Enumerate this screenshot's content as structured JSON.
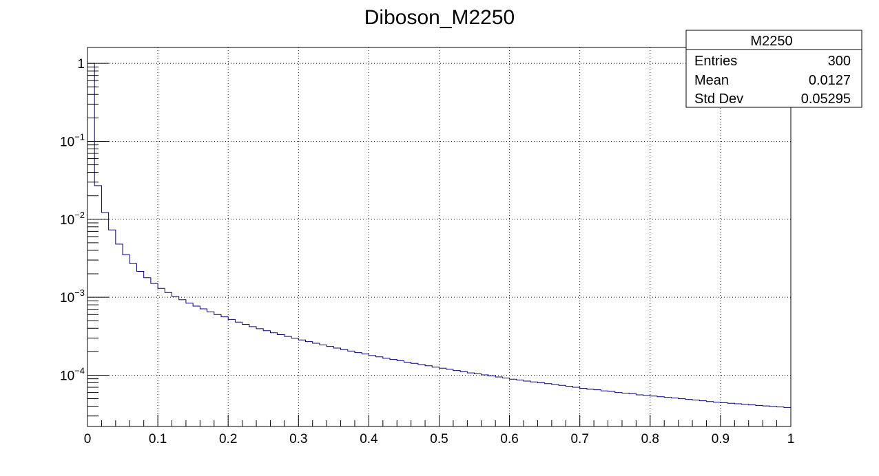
{
  "chart_data": {
    "type": "line",
    "drawstyle": "histogram-step",
    "title": "Diboson_M2250",
    "xlabel": "",
    "ylabel": "",
    "xlim": [
      0,
      1
    ],
    "ylim": [
      2.2e-05,
      1.6
    ],
    "yscale": "log",
    "grid": true,
    "x_ticks": [
      "0",
      "0.1",
      "0.2",
      "0.3",
      "0.4",
      "0.5",
      "0.6",
      "0.7",
      "0.8",
      "0.9",
      "1"
    ],
    "y_ticks": [
      {
        "value": 1,
        "base": "1",
        "exp": ""
      },
      {
        "value": 0.1,
        "base": "10",
        "exp": "−1"
      },
      {
        "value": 0.01,
        "base": "10",
        "exp": "−2"
      },
      {
        "value": 0.001,
        "base": "10",
        "exp": "−3"
      },
      {
        "value": 0.0001,
        "base": "10",
        "exp": "−4"
      }
    ],
    "bin_width": 0.01,
    "bin_edges_start": 0,
    "series": [
      {
        "color": "#000080",
        "values": [
          1.0,
          0.027,
          0.0122,
          0.0073,
          0.0048,
          0.0035,
          0.0027,
          0.00215,
          0.00178,
          0.0015,
          0.0013,
          0.00115,
          0.00102,
          0.00093,
          0.00084,
          0.00077,
          0.00071,
          0.00065,
          0.0006,
          0.00056,
          0.00052,
          0.00048,
          0.00045,
          0.00042,
          0.000395,
          0.000372,
          0.00035,
          0.000331,
          0.000314,
          0.000298,
          0.000283,
          0.00027,
          0.000257,
          0.000245,
          0.000234,
          0.000223,
          0.000213,
          0.000204,
          0.000195,
          0.000187,
          0.000179,
          0.000172,
          0.000165,
          0.000159,
          0.000153,
          0.000147,
          0.000142,
          0.000137,
          0.000132,
          0.000127,
          0.000123,
          0.000119,
          0.000115,
          0.000111,
          0.000107,
          0.000104,
          0.000101,
          9.8e-05,
          9.5e-05,
          9.2e-05,
          8.9e-05,
          8.7e-05,
          8.4e-05,
          8.2e-05,
          8e-05,
          7.8e-05,
          7.6e-05,
          7.4e-05,
          7.2e-05,
          7e-05,
          6.8e-05,
          6.6e-05,
          6.5e-05,
          6.3e-05,
          6.2e-05,
          6e-05,
          5.9e-05,
          5.8e-05,
          5.6e-05,
          5.5e-05,
          5.4e-05,
          5.3e-05,
          5.2e-05,
          5.1e-05,
          5e-05,
          4.9e-05,
          4.8e-05,
          4.7e-05,
          4.6e-05,
          4.5e-05,
          4.45e-05,
          4.37e-05,
          4.3e-05,
          4.23e-05,
          4.16e-05,
          4.1e-05,
          4.04e-05,
          3.98e-05,
          3.92e-05,
          3.86e-05
        ]
      }
    ]
  },
  "stats_box": {
    "name": "M2250",
    "entries_label": "Entries",
    "entries_value": "300",
    "mean_label": "Mean",
    "mean_value": "0.0127",
    "stddev_label": "Std Dev",
    "stddev_value": "0.05295"
  }
}
